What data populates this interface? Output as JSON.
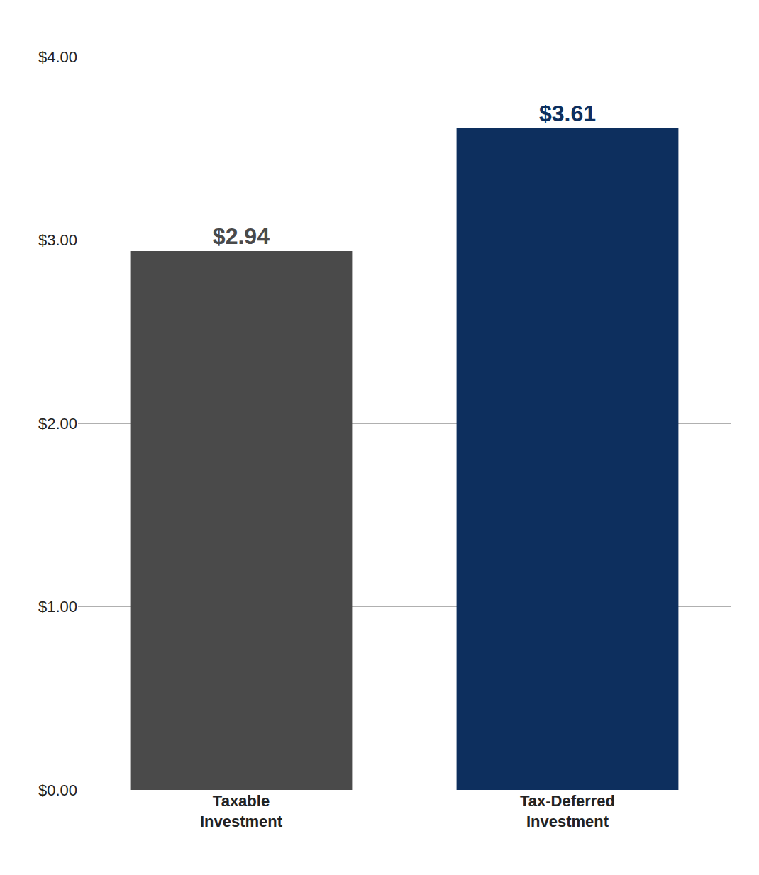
{
  "chart_data": {
    "type": "bar",
    "categories": [
      "Taxable\nInvestment",
      "Tax-Deferred\nInvestment"
    ],
    "values": [
      2.94,
      3.61
    ],
    "value_labels": [
      "$2.94",
      "$3.61"
    ],
    "colors": [
      "#4a4a4a",
      "#0d2f5e"
    ],
    "ylim": [
      0,
      4.0
    ],
    "yticks": [
      {
        "value": 0.0,
        "label": "$0.00"
      },
      {
        "value": 1.0,
        "label": "$1.00"
      },
      {
        "value": 2.0,
        "label": "$2.00"
      },
      {
        "value": 3.0,
        "label": "$3.00"
      },
      {
        "value": 4.0,
        "label": "$4.00"
      }
    ],
    "grid": true,
    "data_labels": true
  }
}
